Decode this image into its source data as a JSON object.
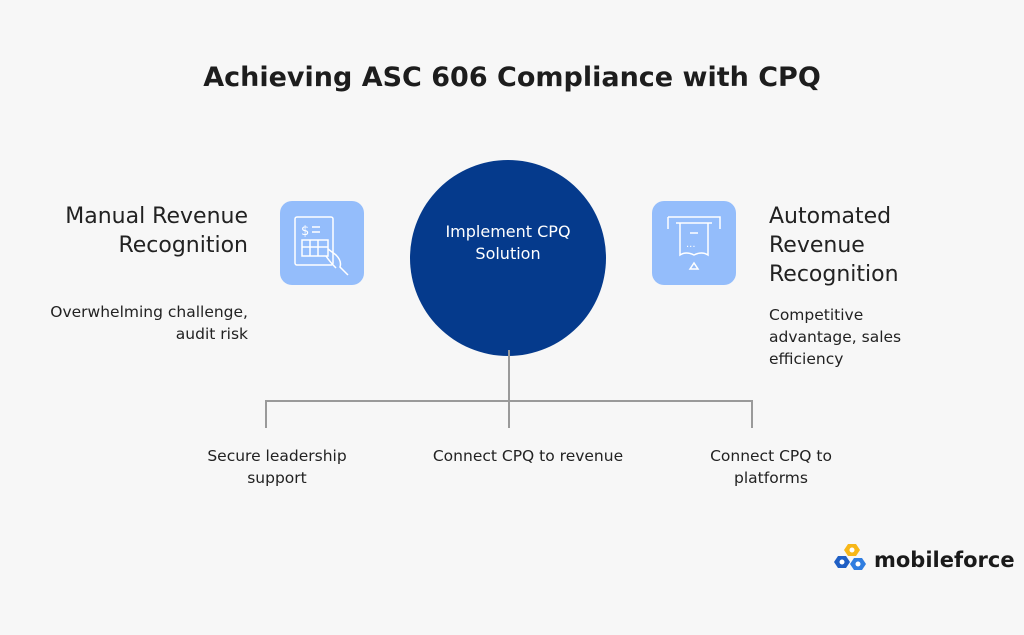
{
  "title": "Achieving ASC 606 Compliance with CPQ",
  "center": {
    "label": "Implement CPQ Solution",
    "color": "#053a8c"
  },
  "left": {
    "heading": "Manual Revenue Recognition",
    "description": "Overwhelming challenge, audit risk",
    "icon": "invoice-hand-icon"
  },
  "right": {
    "heading": "Automated Revenue Recognition",
    "description": "Competitive advantage, sales efficiency",
    "icon": "receipt-printer-icon"
  },
  "steps": [
    {
      "label": "Secure leadership support"
    },
    {
      "label": "Connect CPQ to revenue"
    },
    {
      "label": "Connect CPQ to platforms"
    }
  ],
  "logo": {
    "text": "mobileforce"
  },
  "colors": {
    "accent": "#053a8c",
    "icon_bg": "#94bdfb",
    "background": "#f7f7f7"
  }
}
